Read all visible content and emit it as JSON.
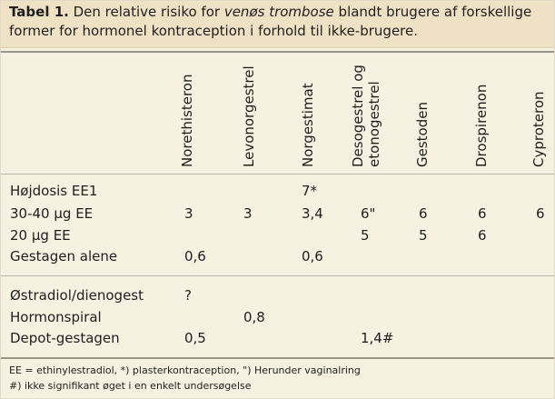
{
  "caption": {
    "label": "Tabel 1.",
    "text_before": " Den relative risiko for ",
    "text_italic": "venøs trombose",
    "text_after_line1": " blandt brugere af forskellige",
    "text_line2": "former for hormonel kontraception i forhold til ikke-brugere."
  },
  "columns": {
    "norethisteron": "Norethisteron",
    "levonorgestrel": "Levonorgestrel",
    "norgestimat": "Norgestimat",
    "desogestrel_line1": "Desogestrel og",
    "desogestrel_line2": "etonogestrel",
    "gestoden": "Gestoden",
    "drospirenon": "Drospirenon",
    "cyproteron": "Cyproteron"
  },
  "rows": {
    "hojdosis": {
      "label": "Højdosis EE1",
      "norgestimat": "7*"
    },
    "ee3040": {
      "label": "30-40 µg EE",
      "norethisteron": "3",
      "levonorgestrel": "3",
      "norgestimat": "3,4",
      "desogestrel": "6\"",
      "gestoden": "6",
      "drospirenon": "6",
      "cyproteron": "6"
    },
    "ee20": {
      "label": "20 µg EE",
      "desogestrel": "5",
      "gestoden": "5",
      "drospirenon": "6"
    },
    "gestagen": {
      "label": "Gestagen alene",
      "norethisteron": "0,6",
      "norgestimat": "0,6"
    },
    "ostradiol": {
      "label": "Østradiol/dienogest",
      "norethisteron": "?"
    },
    "hormonspiral": {
      "label": "Hormonspiral",
      "levonorgestrel": "0,8"
    },
    "depot": {
      "label": "Depot-gestagen",
      "norethisteron": "0,5",
      "desogestrel": "1,4#"
    }
  },
  "footnotes": {
    "line1": "EE = ethinylestradiol, *) plasterkontraception, \") Herunder vaginalring",
    "line2": "#) ikke signifikant øget i en enkelt undersøgelse"
  }
}
